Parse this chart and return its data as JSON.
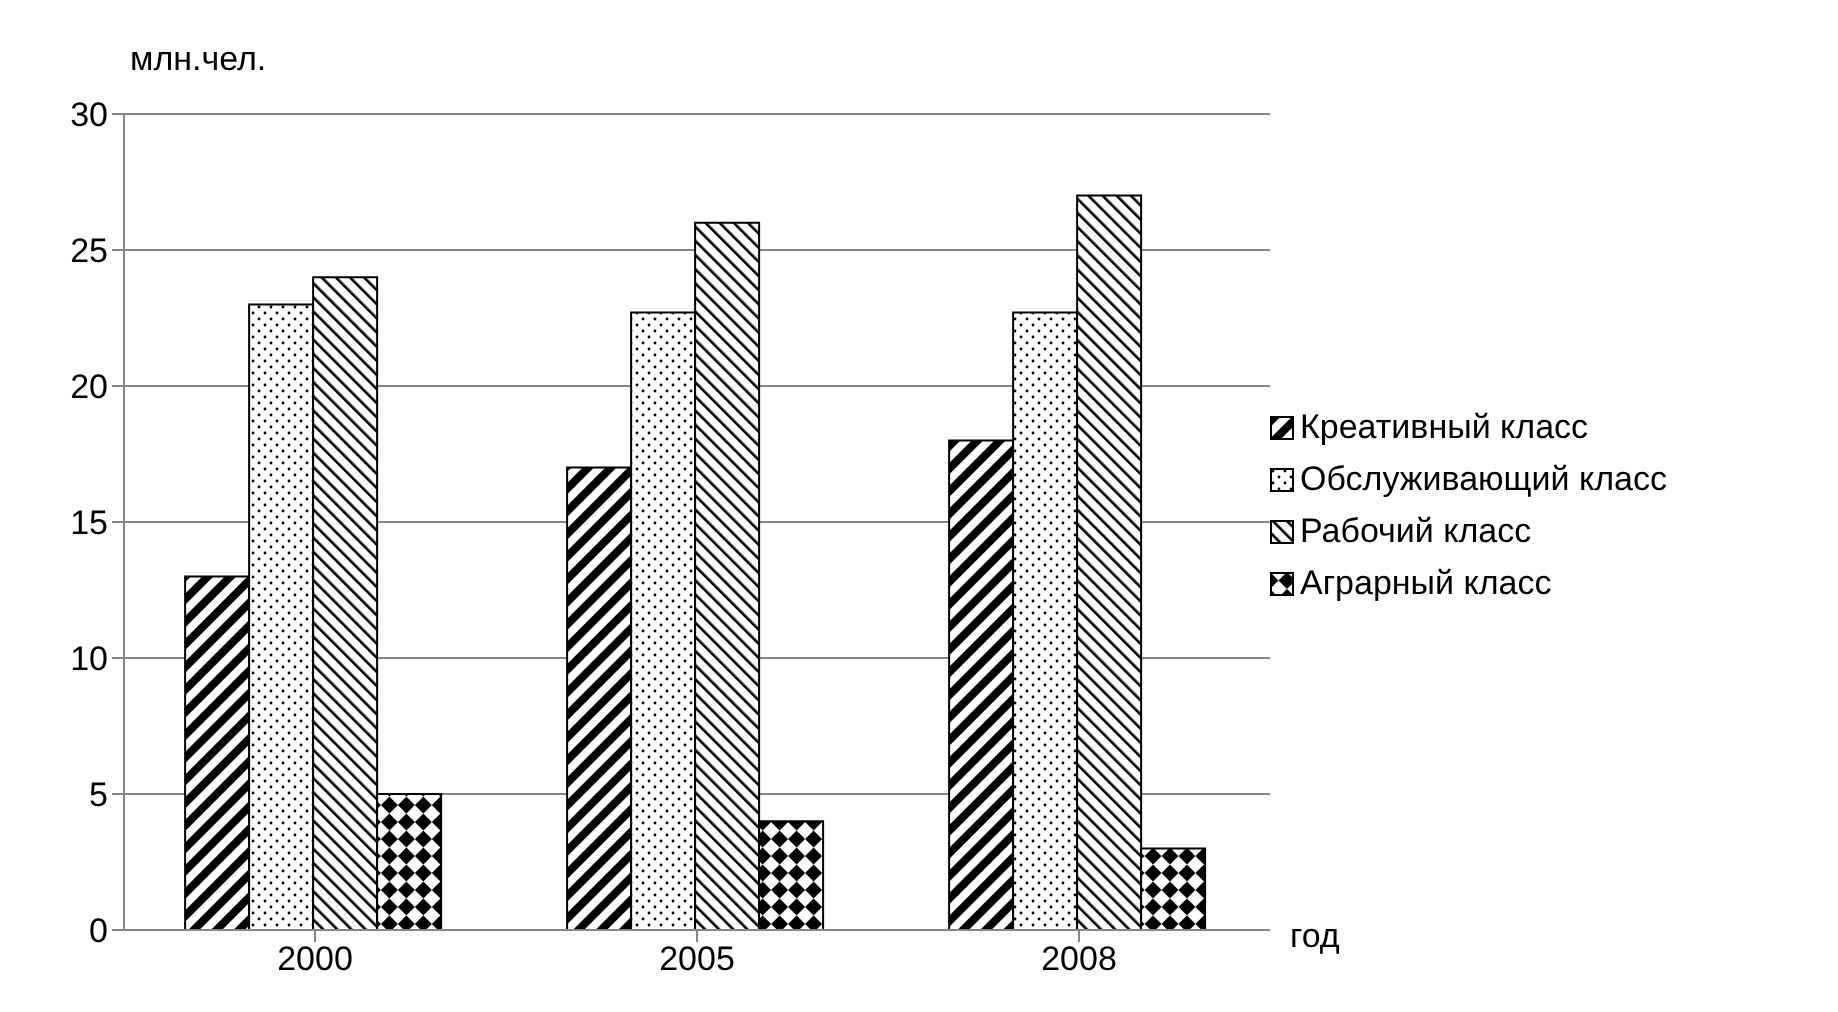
{
  "chart_data": {
    "type": "bar",
    "xlabel": "год",
    "ylabel": "млн.чел.",
    "categories": [
      "2000",
      "2005",
      "2008"
    ],
    "series": [
      {
        "name": "Креативный класс",
        "color": "#000000",
        "values": [
          13,
          17,
          18
        ]
      },
      {
        "name": "Обслуживающий класс",
        "color": "#000000",
        "values": [
          23,
          22.7,
          22.7
        ]
      },
      {
        "name": "Рабочий класс",
        "color": "#000000",
        "values": [
          24,
          26,
          27
        ]
      },
      {
        "name": "Аграрный класс",
        "color": "#000000",
        "values": [
          5,
          4,
          3
        ]
      }
    ],
    "ylim": [
      0,
      30
    ],
    "yticks": [
      0,
      5,
      10,
      15,
      20,
      25,
      30
    ],
    "grid": "y",
    "legend": "right"
  }
}
